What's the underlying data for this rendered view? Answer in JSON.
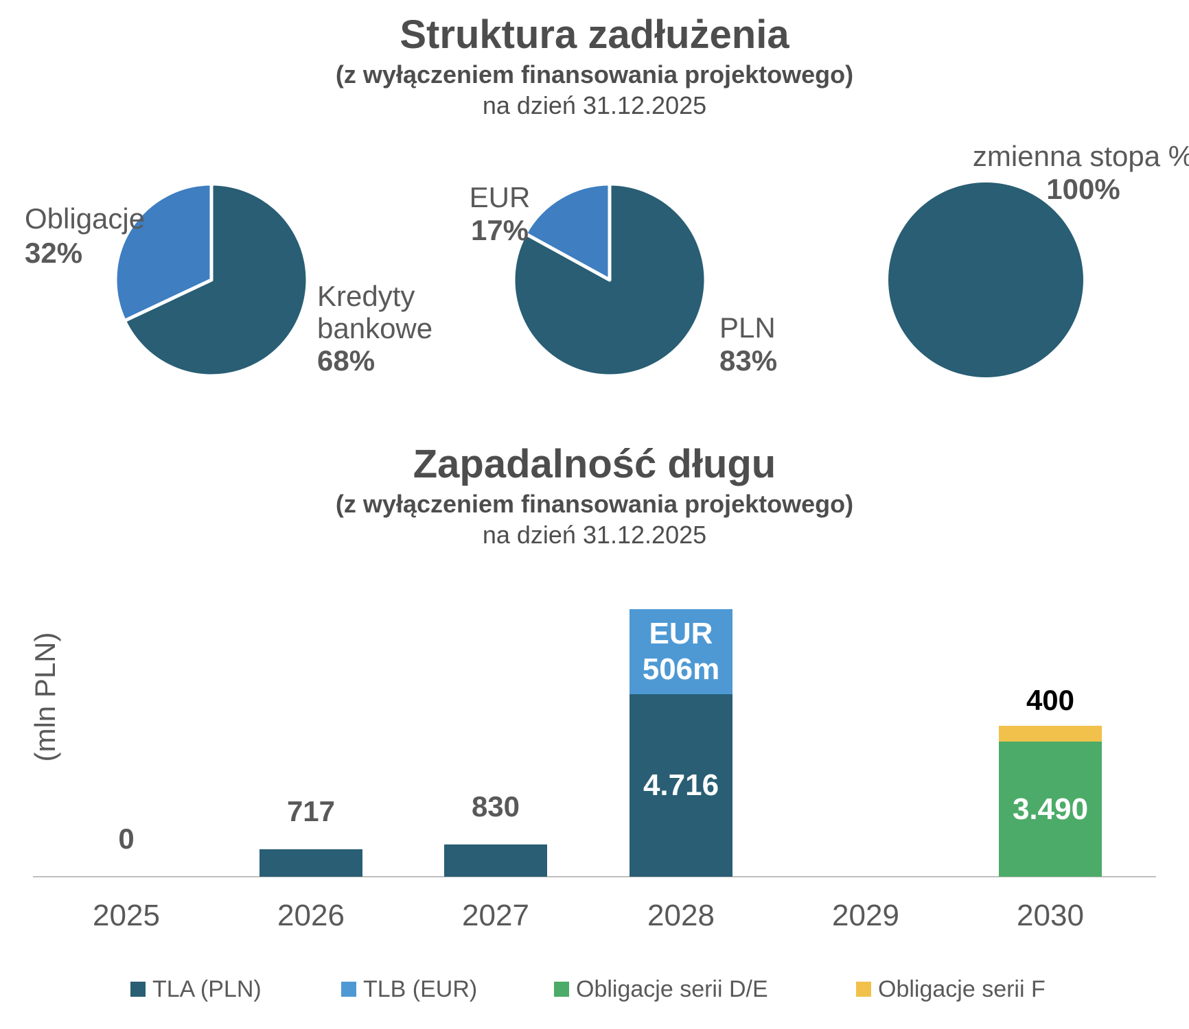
{
  "top_chart": {
    "title": "Struktura zadłużenia",
    "subtitle": "(z wyłączeniem finansowania projektowego)",
    "as_of": "na dzień 31.12.2025"
  },
  "bottom_chart": {
    "title": "Zapadalność długu",
    "subtitle": "(z wyłączeniem finansowania projektowego)",
    "as_of": "na dzień 31.12.2025",
    "y_axis_label": "(mln PLN)"
  },
  "colors": {
    "dark_teal": "#295E74",
    "pie_blue": "#3E7EC1",
    "bar_blue": "#4E99D4",
    "green": "#4CAB68",
    "yellow": "#F1C14B",
    "label_gray": "#595959",
    "title_gray": "#4D4D4D",
    "axis_gray": "#BFBFBF",
    "black": "#000000",
    "white": "#FFFFFF"
  },
  "chart_data": [
    {
      "type": "pie",
      "name": "debt-structure-by-instrument",
      "slices": [
        {
          "label": "Kredyty bankowe",
          "value": 68,
          "color": "#295E74"
        },
        {
          "label": "Obligacje",
          "value": 32,
          "color": "#3E7EC1"
        }
      ],
      "callouts": {
        "left": {
          "lines": [
            "Obligacje",
            "32%"
          ]
        },
        "right": {
          "lines": [
            "Kredyty",
            "bankowe",
            "68%"
          ]
        }
      }
    },
    {
      "type": "pie",
      "name": "debt-structure-by-currency",
      "slices": [
        {
          "label": "PLN",
          "value": 83,
          "color": "#295E74"
        },
        {
          "label": "EUR",
          "value": 17,
          "color": "#3E7EC1"
        }
      ],
      "callouts": {
        "left": {
          "lines": [
            "EUR",
            "17%"
          ]
        },
        "right": {
          "lines": [
            "PLN",
            "83%"
          ]
        }
      }
    },
    {
      "type": "pie",
      "name": "debt-structure-by-rate-type",
      "slices": [
        {
          "label": "zmienna stopa %",
          "value": 100,
          "color": "#295E74"
        }
      ],
      "callouts": {
        "top": {
          "lines": [
            "zmienna stopa %",
            "100%"
          ]
        }
      }
    },
    {
      "type": "bar",
      "name": "debt-maturity",
      "stacked": true,
      "unit": "mln PLN",
      "categories": [
        "2025",
        "2026",
        "2027",
        "2028",
        "2029",
        "2030"
      ],
      "series_legend": [
        {
          "name": "TLA (PLN)",
          "color": "#295E74"
        },
        {
          "name": "TLB (EUR)",
          "color": "#4E99D4"
        },
        {
          "name": "Obligacje serii D/E",
          "color": "#4CAB68"
        },
        {
          "name": "Obligacje serii F",
          "color": "#F1C14B"
        }
      ],
      "bars": [
        {
          "category": "2025",
          "total_label": "0",
          "total_label_color": "#595959",
          "segments": []
        },
        {
          "category": "2026",
          "total_label": "717",
          "total_label_color": "#595959",
          "segments": [
            {
              "series": "TLA (PLN)",
              "value": 717,
              "color": "#295E74"
            }
          ]
        },
        {
          "category": "2027",
          "total_label": "830",
          "total_label_color": "#595959",
          "segments": [
            {
              "series": "TLA (PLN)",
              "value": 830,
              "color": "#295E74"
            }
          ]
        },
        {
          "category": "2028",
          "segments": [
            {
              "series": "TLA (PLN)",
              "value": 4716,
              "inside_label_lines": [
                "4.716"
              ],
              "color": "#295E74"
            },
            {
              "series": "TLB (EUR)",
              "value_label": "EUR 506m",
              "pln_equivalent_estimate": 2200,
              "inside_label_lines": [
                "EUR",
                "506m"
              ],
              "color": "#4E99D4"
            }
          ]
        },
        {
          "category": "2029",
          "segments": []
        },
        {
          "category": "2030",
          "total_label": "400",
          "total_label_color": "#000000",
          "segments": [
            {
              "series": "Obligacje serii D/E",
              "value": 3490,
              "inside_label_lines": [
                "3.490"
              ],
              "color": "#4CAB68"
            },
            {
              "series": "Obligacje serii F",
              "value": 400,
              "color": "#F1C14B"
            }
          ]
        }
      ]
    }
  ]
}
